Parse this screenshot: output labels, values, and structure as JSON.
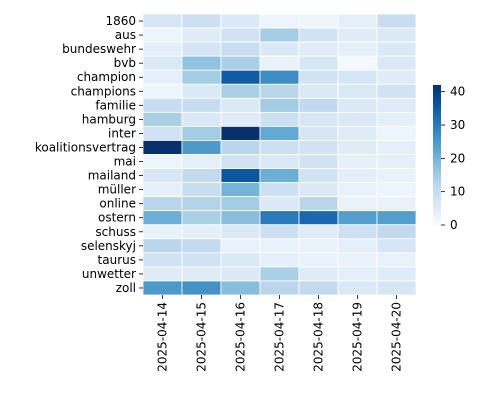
{
  "chart_data": {
    "type": "heatmap",
    "title": "",
    "xlabel": "",
    "ylabel": "",
    "x": [
      "2025-04-14",
      "2025-04-15",
      "2025-04-16",
      "2025-04-17",
      "2025-04-18",
      "2025-04-19",
      "2025-04-20"
    ],
    "y": [
      "1860",
      "aus",
      "bundeswehr",
      "bvb",
      "champion",
      "champions",
      "familie",
      "hamburg",
      "inter",
      "koalitionsvertrag",
      "mai",
      "mailand",
      "müller",
      "online",
      "ostern",
      "schuss",
      "selenskyj",
      "taurus",
      "unwetter",
      "zoll"
    ],
    "values": [
      [
        7,
        9,
        6,
        2,
        2,
        4,
        10
      ],
      [
        2,
        5,
        8,
        15,
        8,
        5,
        6
      ],
      [
        4,
        7,
        10,
        6,
        5,
        4,
        6
      ],
      [
        6,
        17,
        14,
        3,
        7,
        1,
        6
      ],
      [
        4,
        15,
        35,
        27,
        8,
        7,
        5
      ],
      [
        2,
        6,
        14,
        12,
        6,
        6,
        8
      ],
      [
        10,
        10,
        6,
        15,
        11,
        6,
        5
      ],
      [
        14,
        6,
        5,
        9,
        7,
        6,
        4
      ],
      [
        8,
        15,
        42,
        22,
        7,
        5,
        2
      ],
      [
        42,
        25,
        12,
        9,
        8,
        5,
        4
      ],
      [
        2,
        4,
        8,
        6,
        8,
        4,
        4
      ],
      [
        7,
        11,
        36,
        21,
        8,
        4,
        3
      ],
      [
        4,
        10,
        20,
        9,
        6,
        3,
        2
      ],
      [
        12,
        13,
        15,
        6,
        12,
        3,
        3
      ],
      [
        21,
        14,
        18,
        30,
        33,
        24,
        24
      ],
      [
        3,
        4,
        6,
        9,
        5,
        9,
        11
      ],
      [
        12,
        11,
        3,
        3,
        3,
        4,
        7
      ],
      [
        8,
        8,
        6,
        4,
        3,
        3,
        3
      ],
      [
        5,
        5,
        6,
        14,
        5,
        4,
        5
      ],
      [
        25,
        26,
        18,
        12,
        11,
        6,
        7
      ]
    ],
    "vmin": 0,
    "vmax": 42,
    "colormap": "Blues",
    "colorbar_ticks": [
      0,
      10,
      20,
      30,
      40
    ],
    "legend": "colorbar-right"
  }
}
